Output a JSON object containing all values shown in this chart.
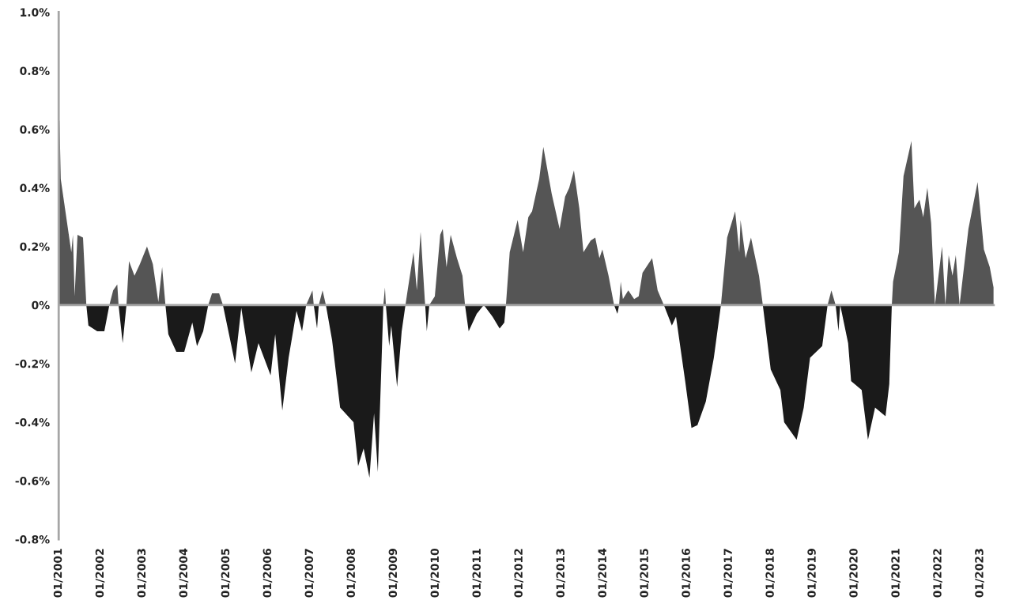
{
  "chart_data": {
    "type": "area",
    "series": [
      {
        "color": "#555555",
        "x": [
          "2001-01-01",
          "2001-01-08",
          "2001-01-19",
          "2001-03-19",
          "2001-04-21",
          "2001-05-05",
          "2001-05-20",
          "2001-06-14",
          "2001-08-01",
          "2001-08-30",
          "2002-03-19",
          "2002-04-21",
          "2002-05-27",
          "2002-06-07",
          "2002-08-15",
          "2002-09-06",
          "2002-10-24",
          "2002-12-10",
          "2003-02-10",
          "2003-04-02",
          "2003-05-20",
          "2003-06-22",
          "2003-07-21",
          "2004-07-28",
          "2004-08-30",
          "2004-10-31",
          "2004-12-03",
          "2006-11-29",
          "2007-01-23",
          "2007-02-03",
          "2007-03-19",
          "2007-04-21",
          "2007-05-20",
          "2008-10-02",
          "2008-10-16",
          "2008-10-24",
          "2009-04-13",
          "2009-04-28",
          "2009-06-22",
          "2009-07-21",
          "2009-08-23",
          "2009-09-28",
          "2009-10-02",
          "2009-11-07",
          "2009-12-25",
          "2010-02-10",
          "2010-03-04",
          "2010-04-06",
          "2010-05-12",
          "2010-07-06",
          "2010-08-23",
          "2010-09-14",
          "2011-09-06",
          "2011-10-09",
          "2011-12-17",
          "2012-02-03",
          "2012-03-19",
          "2012-04-21",
          "2012-06-22",
          "2012-07-28",
          "2012-10-09",
          "2012-12-17",
          "2013-02-03",
          "2013-03-11",
          "2013-04-21",
          "2013-06-07",
          "2013-07-13",
          "2013-09-14",
          "2013-10-24",
          "2013-11-29",
          "2013-12-25",
          "2014-02-17",
          "2014-04-06",
          "2014-05-20",
          "2014-06-03",
          "2014-06-22",
          "2014-08-08",
          "2014-09-28",
          "2014-11-07",
          "2014-12-10",
          "2015-03-04",
          "2015-04-21",
          "2015-06-14",
          "2016-10-24",
          "2016-12-17",
          "2017-02-25",
          "2017-04-02",
          "2017-04-13",
          "2017-05-27",
          "2017-07-13",
          "2017-09-21",
          "2017-10-24",
          "2019-05-12",
          "2019-06-14",
          "2019-07-21",
          "2020-11-22",
          "2020-12-03",
          "2021-01-23",
          "2021-03-04",
          "2021-05-12",
          "2021-06-07",
          "2021-07-21",
          "2021-08-23",
          "2021-09-28",
          "2021-10-31",
          "2021-12-03",
          "2022-02-03",
          "2022-03-04",
          "2022-04-02",
          "2022-05-05",
          "2022-06-03",
          "2022-07-06",
          "2022-09-21",
          "2022-12-10",
          "2023-02-03",
          "2023-03-26",
          "2023-04-28"
        ],
        "values": [
          0.63,
          0.63,
          0.43,
          0.27,
          0.18,
          0.24,
          0.03,
          0.24,
          0.23,
          0,
          0,
          0.05,
          0.07,
          0,
          0,
          0.15,
          0.1,
          0.14,
          0.2,
          0.14,
          0.01,
          0.13,
          0,
          0,
          0.04,
          0.04,
          0,
          0,
          0.05,
          0,
          0,
          0.05,
          0,
          0,
          0.06,
          0,
          0,
          0.04,
          0.18,
          0.05,
          0.25,
          0.02,
          0,
          0,
          0.03,
          0.24,
          0.26,
          0.13,
          0.24,
          0.16,
          0.1,
          0,
          0,
          0.18,
          0.29,
          0.18,
          0.3,
          0.32,
          0.43,
          0.54,
          0.38,
          0.26,
          0.37,
          0.4,
          0.46,
          0.33,
          0.18,
          0.22,
          0.23,
          0.16,
          0.19,
          0.1,
          0,
          0,
          0.08,
          0.02,
          0.05,
          0.02,
          0.03,
          0.11,
          0.16,
          0.05,
          0,
          0,
          0.23,
          0.32,
          0.18,
          0.29,
          0.16,
          0.23,
          0.1,
          0,
          0,
          0.05,
          0,
          0,
          0.08,
          0.18,
          0.44,
          0.56,
          0.33,
          0.36,
          0.3,
          0.4,
          0.28,
          0,
          0.2,
          0,
          0.17,
          0.1,
          0.17,
          0,
          0.26,
          0.42,
          0.19,
          0.13,
          0.06
        ]
      },
      {
        "color": "#1a1a1a",
        "x": [
          "2001-08-30",
          "2001-09-17",
          "2001-12-03",
          "2002-02-03",
          "2002-03-19",
          "2002-06-07",
          "2002-07-13",
          "2002-08-15",
          "2003-07-21",
          "2003-08-15",
          "2003-10-24",
          "2004-01-01",
          "2004-03-11",
          "2004-04-21",
          "2004-06-14",
          "2004-07-28",
          "2004-12-03",
          "2005-03-19",
          "2005-05-12",
          "2005-08-08",
          "2005-10-09",
          "2006-01-23",
          "2006-03-04",
          "2006-05-05",
          "2006-06-29",
          "2006-09-06",
          "2006-10-24",
          "2006-11-29",
          "2007-02-03",
          "2007-03-04",
          "2007-03-19",
          "2007-05-20",
          "2007-07-13",
          "2007-09-21",
          "2008-01-16",
          "2008-02-25",
          "2008-04-13",
          "2008-06-03",
          "2008-07-13",
          "2008-08-15",
          "2008-09-14",
          "2008-10-02",
          "2008-10-24",
          "2008-11-22",
          "2008-12-10",
          "2009-01-30",
          "2009-03-11",
          "2009-04-13",
          "2009-10-02",
          "2009-10-16",
          "2009-11-07",
          "2010-09-14",
          "2010-10-16",
          "2010-12-25",
          "2011-02-25",
          "2011-05-12",
          "2011-07-13",
          "2011-08-23",
          "2011-09-06",
          "2014-04-06",
          "2014-05-05",
          "2014-05-20",
          "2015-06-14",
          "2015-08-23",
          "2015-09-28",
          "2015-12-17",
          "2016-02-10",
          "2016-04-02",
          "2016-06-14",
          "2016-08-23",
          "2016-10-24",
          "2017-10-24",
          "2018-01-01",
          "2018-03-26",
          "2018-04-28",
          "2018-08-15",
          "2018-10-16",
          "2018-12-10",
          "2019-03-26",
          "2019-05-12",
          "2019-07-21",
          "2019-08-15",
          "2019-08-30",
          "2019-11-07",
          "2019-12-03",
          "2020-03-04",
          "2020-04-28",
          "2020-06-29",
          "2020-09-28",
          "2020-10-31",
          "2020-11-22"
        ],
        "values": [
          0,
          -0.07,
          -0.09,
          -0.09,
          0,
          0,
          -0.13,
          0,
          0,
          -0.1,
          -0.16,
          -0.16,
          -0.06,
          -0.14,
          -0.09,
          0,
          0,
          -0.2,
          -0.01,
          -0.23,
          -0.13,
          -0.24,
          -0.1,
          -0.36,
          -0.18,
          -0.02,
          -0.09,
          0,
          0,
          -0.08,
          0,
          0,
          -0.12,
          -0.35,
          -0.4,
          -0.55,
          -0.49,
          -0.59,
          -0.37,
          -0.57,
          -0.22,
          0,
          0,
          -0.14,
          -0.07,
          -0.28,
          -0.09,
          0,
          0,
          -0.09,
          0,
          0,
          -0.09,
          -0.03,
          0,
          -0.04,
          -0.08,
          -0.06,
          0,
          0,
          -0.03,
          0,
          0,
          -0.07,
          -0.04,
          -0.26,
          -0.42,
          -0.41,
          -0.33,
          -0.18,
          0,
          0,
          -0.22,
          -0.29,
          -0.4,
          -0.46,
          -0.35,
          -0.18,
          -0.14,
          0,
          0,
          -0.09,
          0,
          -0.13,
          -0.26,
          -0.29,
          -0.46,
          -0.35,
          -0.38,
          -0.27,
          0
        ]
      }
    ],
    "xlim": [
      "2001-01-01",
      "2023-05-09"
    ],
    "xticks": [
      {
        "value": "2001-01",
        "label": "01/2001"
      },
      {
        "value": "2002-01",
        "label": "01/2002"
      },
      {
        "value": "2003-01",
        "label": "01/2003"
      },
      {
        "value": "2004-01",
        "label": "01/2004"
      },
      {
        "value": "2005-01",
        "label": "01/2005"
      },
      {
        "value": "2006-01",
        "label": "01/2006"
      },
      {
        "value": "2007-01",
        "label": "01/2007"
      },
      {
        "value": "2008-01",
        "label": "01/2008"
      },
      {
        "value": "2009-01",
        "label": "01/2009"
      },
      {
        "value": "2010-01",
        "label": "01/2010"
      },
      {
        "value": "2011-01",
        "label": "01/2011"
      },
      {
        "value": "2012-01",
        "label": "01/2012"
      },
      {
        "value": "2013-01",
        "label": "01/2013"
      },
      {
        "value": "2014-01",
        "label": "01/2014"
      },
      {
        "value": "2015-01",
        "label": "01/2015"
      },
      {
        "value": "2016-01",
        "label": "01/2016"
      },
      {
        "value": "2017-01",
        "label": "01/2017"
      },
      {
        "value": "2018-01",
        "label": "01/2018"
      },
      {
        "value": "2019-01",
        "label": "01/2019"
      },
      {
        "value": "2020-01",
        "label": "01/2020"
      },
      {
        "value": "2021-01",
        "label": "01/2021"
      },
      {
        "value": "2022-01",
        "label": "01/2022"
      },
      {
        "value": "2023-01",
        "label": "01/2023"
      }
    ],
    "ylim": [
      -0.8,
      1.0
    ],
    "yticks": [
      {
        "value": -0.8,
        "label": "-0.8%"
      },
      {
        "value": -0.6,
        "label": "-0.6%"
      },
      {
        "value": -0.4,
        "label": "-0.4%"
      },
      {
        "value": -0.2,
        "label": "-0.2%"
      },
      {
        "value": 0,
        "label": "0%"
      },
      {
        "value": 0.2,
        "label": "0.2%"
      },
      {
        "value": 0.4,
        "label": "0.4%"
      },
      {
        "value": 0.6,
        "label": "0.6%"
      },
      {
        "value": 0.8,
        "label": "0.8%"
      },
      {
        "value": 1.0,
        "label": "1.0%"
      }
    ],
    "ref_lines": [
      {
        "axis": "y",
        "value": 0,
        "color": "#a6a6a6"
      }
    ],
    "grid": false,
    "legend": false
  }
}
